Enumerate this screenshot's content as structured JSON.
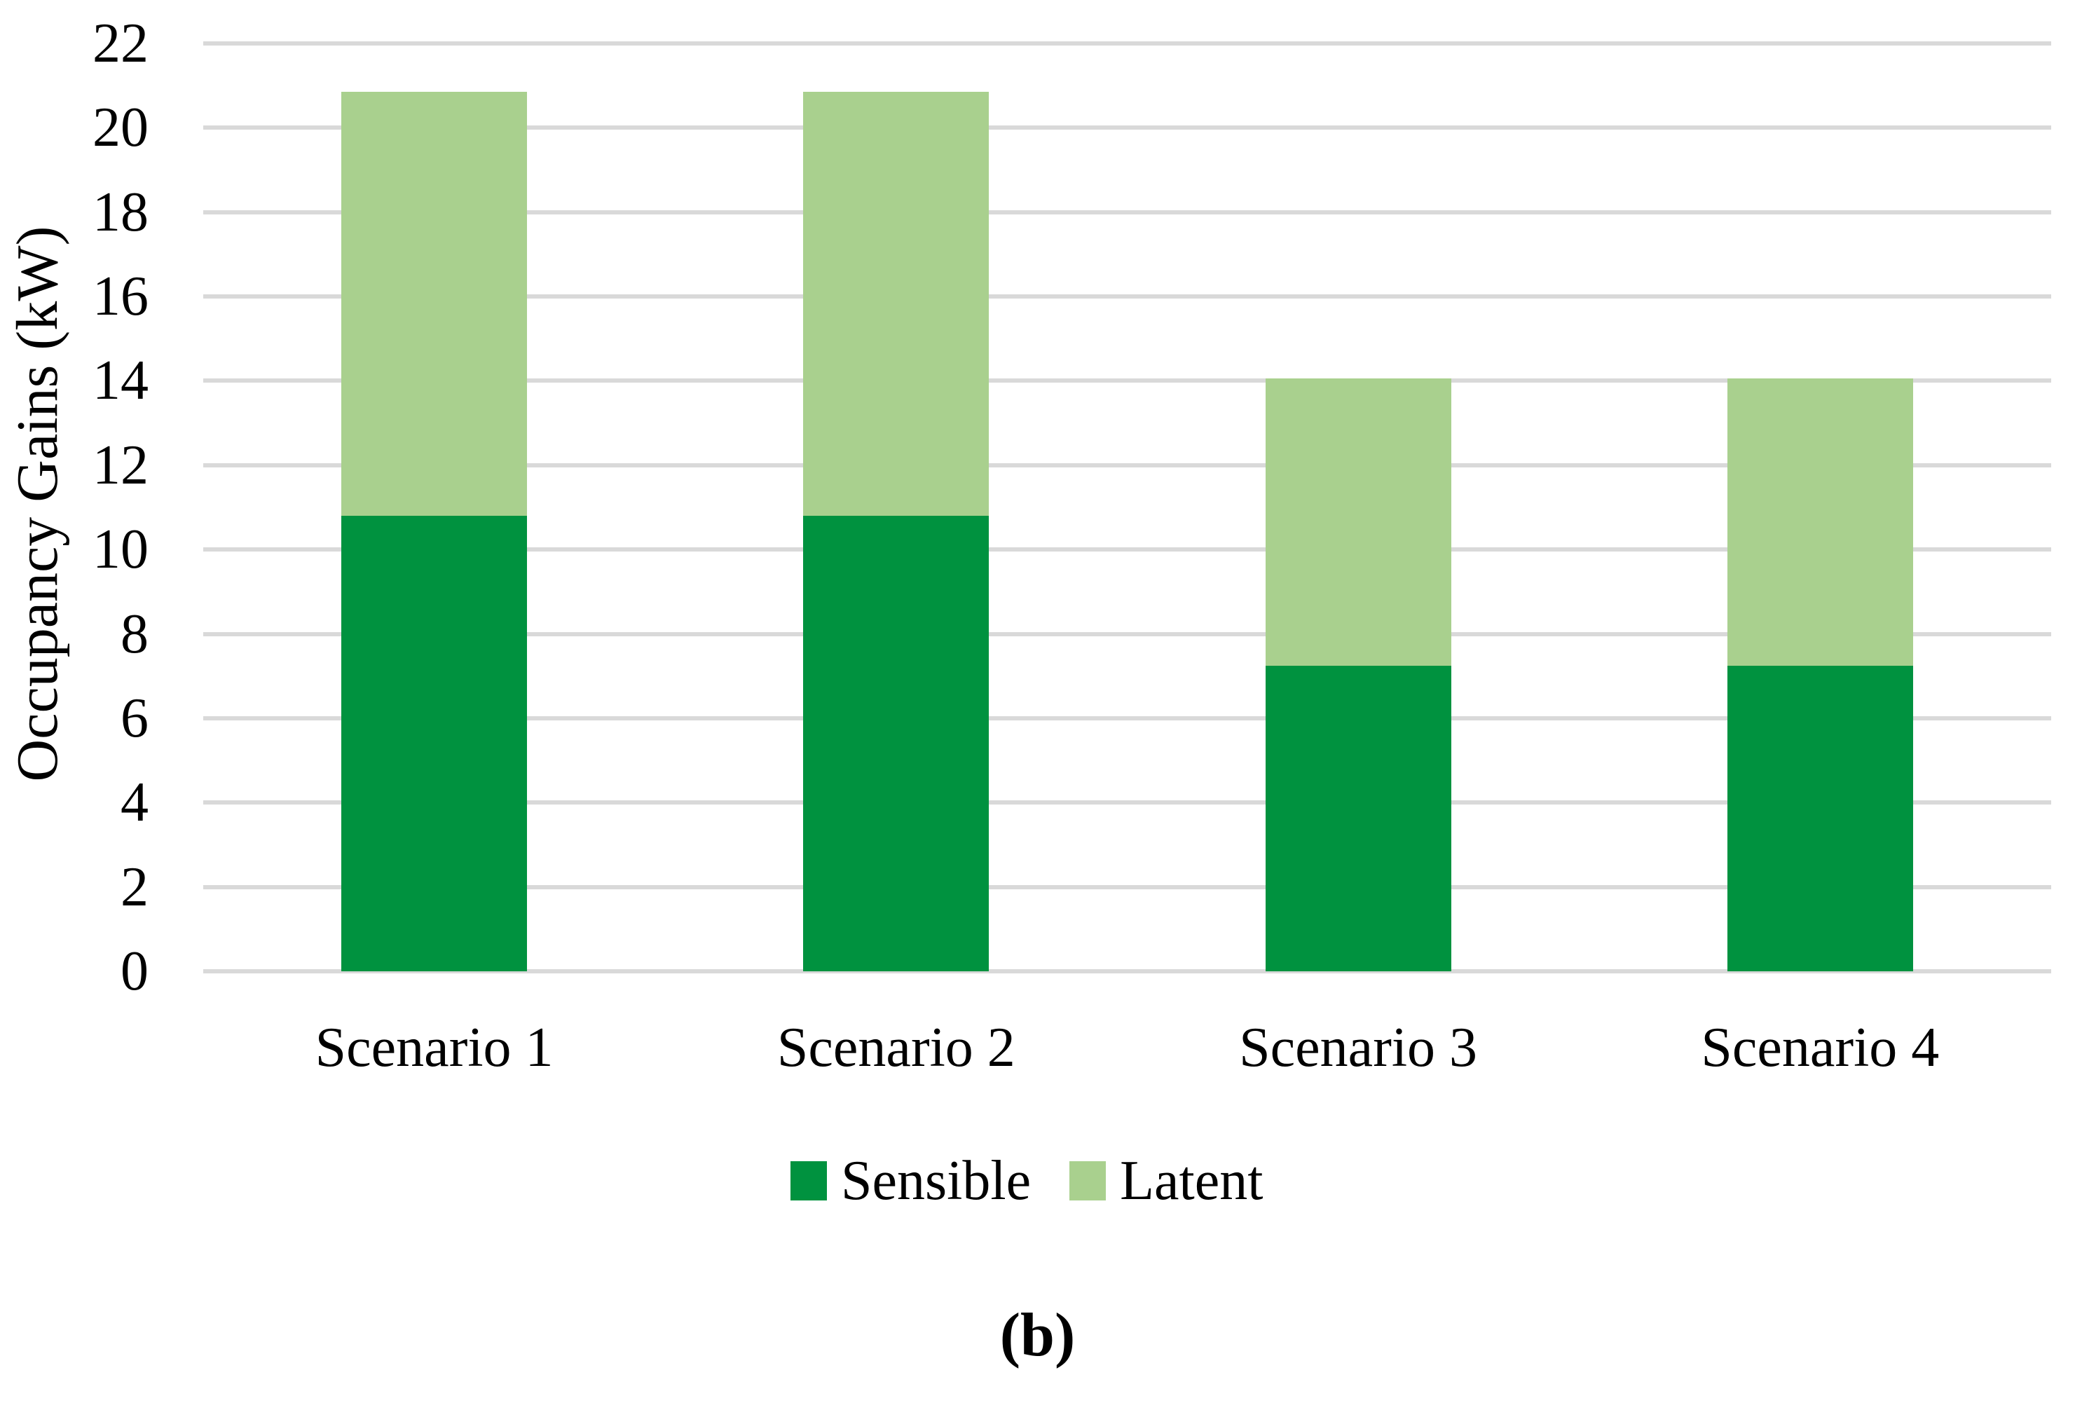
{
  "figure": {
    "caption": "(b)"
  },
  "chart_data": {
    "type": "bar",
    "stacked": true,
    "title": "",
    "xlabel": "",
    "ylabel": "Occupancy Gains (kW)",
    "categories": [
      "Scenario 1",
      "Scenario 2",
      "Scenario 3",
      "Scenario 4"
    ],
    "series": [
      {
        "name": "Sensible",
        "color": "#00923F",
        "values": [
          10.8,
          10.8,
          7.25,
          7.25
        ]
      },
      {
        "name": "Latent",
        "color": "#A9D08E",
        "values": [
          10.05,
          10.05,
          6.8,
          6.8
        ]
      }
    ],
    "totals": [
      20.85,
      20.85,
      14.05,
      14.05
    ],
    "ylim": [
      0,
      22
    ],
    "ytick_step": 2,
    "yticks": [
      0,
      2,
      4,
      6,
      8,
      10,
      12,
      14,
      16,
      18,
      20,
      22
    ],
    "grid": "horizontal",
    "gridline_color": "#D9D9D9",
    "legend_position": "bottom",
    "legend_entries": [
      "Sensible",
      "Latent"
    ]
  }
}
